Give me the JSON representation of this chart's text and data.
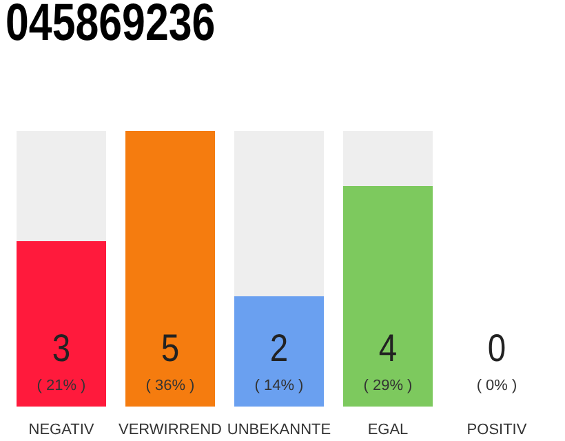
{
  "chart_data": {
    "type": "bar",
    "title": "045869236",
    "categories": [
      "NEGATIV",
      "VERWIRREND",
      "UNBEKANNTE",
      "EGAL",
      "POSITIV"
    ],
    "values": [
      3,
      5,
      2,
      4,
      0
    ],
    "colors": [
      "#ff1a3c",
      "#f57c0f",
      "#6aa0f0",
      "#7dc95e",
      "#bdbdbd"
    ],
    "data_labels": true,
    "annotations": [
      "( 21% )",
      "( 36% )",
      "( 14% )",
      "( 29% )",
      "( 0% )"
    ],
    "grid": false,
    "legend": false
  }
}
